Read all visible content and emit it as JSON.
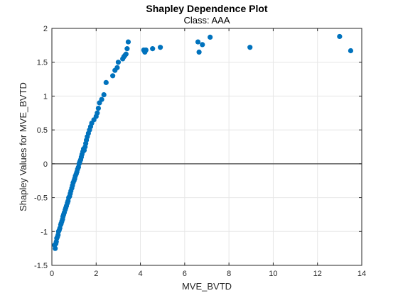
{
  "chart_data": {
    "type": "scatter",
    "title": "Shapley Dependence Plot",
    "subtitle": "Class: AAA",
    "xlabel": "MVE_BVTD",
    "ylabel": "Shapley Values for MVE_BVTD",
    "xlim": [
      0,
      14
    ],
    "ylim": [
      -1.5,
      2
    ],
    "xticks": [
      0,
      2,
      4,
      6,
      8,
      10,
      12,
      14
    ],
    "yticks": [
      -1.5,
      -1,
      -0.5,
      0,
      0.5,
      1,
      1.5,
      2
    ],
    "ytick_labels": [
      "-1.5",
      "-1",
      "-0.5",
      "0",
      "0.5",
      "1",
      "1.5",
      "2"
    ],
    "grid": true,
    "reference_line_y": 0,
    "marker_color": "#0072BD",
    "x": [
      0.12,
      0.15,
      0.18,
      0.2,
      0.22,
      0.25,
      0.28,
      0.3,
      0.33,
      0.36,
      0.4,
      0.42,
      0.45,
      0.48,
      0.5,
      0.53,
      0.56,
      0.6,
      0.63,
      0.66,
      0.7,
      0.73,
      0.76,
      0.8,
      0.83,
      0.86,
      0.9,
      0.93,
      0.96,
      1.0,
      1.03,
      1.06,
      1.1,
      1.13,
      1.16,
      1.2,
      1.23,
      1.26,
      1.3,
      1.33,
      1.36,
      1.4,
      1.43,
      1.46,
      1.5,
      1.53,
      1.56,
      1.6,
      1.65,
      1.7,
      1.75,
      1.8,
      1.9,
      2.0,
      2.05,
      2.1,
      2.15,
      2.25,
      2.35,
      2.45,
      2.75,
      2.85,
      2.95,
      3.0,
      3.2,
      3.25,
      3.3,
      3.35,
      3.4,
      3.45,
      4.15,
      4.2,
      4.25,
      4.55,
      4.9,
      6.6,
      6.65,
      6.8,
      7.15,
      8.95,
      13.0,
      13.5
    ],
    "y": [
      -1.2,
      -1.25,
      -1.18,
      -1.15,
      -1.1,
      -1.08,
      -1.05,
      -1.0,
      -0.98,
      -0.95,
      -0.9,
      -0.88,
      -0.85,
      -0.82,
      -0.78,
      -0.75,
      -0.72,
      -0.68,
      -0.65,
      -0.62,
      -0.58,
      -0.55,
      -0.5,
      -0.48,
      -0.44,
      -0.4,
      -0.36,
      -0.32,
      -0.28,
      -0.25,
      -0.22,
      -0.18,
      -0.15,
      -0.12,
      -0.08,
      -0.05,
      0.0,
      0.03,
      0.06,
      0.1,
      0.14,
      0.18,
      0.22,
      0.2,
      0.25,
      0.3,
      0.35,
      0.4,
      0.45,
      0.5,
      0.55,
      0.6,
      0.65,
      0.7,
      0.75,
      0.82,
      0.9,
      0.95,
      1.02,
      1.2,
      1.3,
      1.38,
      1.42,
      1.5,
      1.55,
      1.58,
      1.6,
      1.62,
      1.7,
      1.8,
      1.68,
      1.65,
      1.68,
      1.7,
      1.72,
      1.8,
      1.65,
      1.76,
      1.87,
      1.72,
      1.88,
      1.67
    ]
  }
}
